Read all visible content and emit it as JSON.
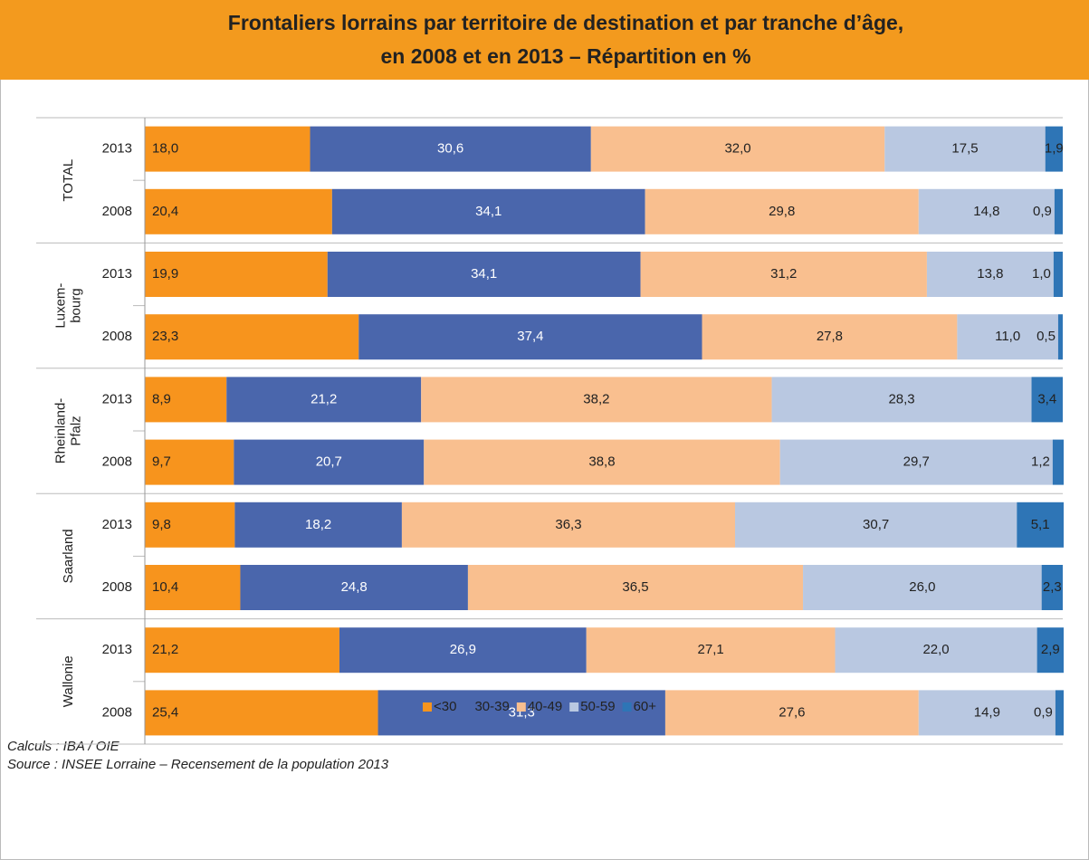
{
  "chart_data": {
    "type": "stacked-bar-horizontal",
    "title": [
      "Frontaliers lorrains par territoire de destination et par tranche d’âge,",
      "en 2008 et en 2013 – Répartition en %"
    ],
    "groups": [
      [
        "TOTAL"
      ],
      [
        "Luxem-",
        "bourg"
      ],
      [
        "Rheinland-",
        "Pfalz"
      ],
      [
        "Saarland"
      ],
      [
        "Wallonie"
      ]
    ],
    "categories": [
      "2013",
      "2008",
      "2013",
      "2008",
      "2013",
      "2008",
      "2013",
      "2008",
      "2013",
      "2008"
    ],
    "xlim": [
      0,
      100
    ],
    "series": [
      {
        "name": "<30",
        "color": "#f7941d",
        "values": [
          18.0,
          20.4,
          19.9,
          23.3,
          8.9,
          9.7,
          9.8,
          10.4,
          21.2,
          25.4
        ],
        "value_labels": [
          "18,0",
          "20,4",
          "19,9",
          "23,3",
          "8,9",
          "9,7",
          "9,8",
          "10,4",
          "21,2",
          "25,4"
        ]
      },
      {
        "name": "30-39",
        "color": "#4a66ac",
        "values": [
          30.6,
          34.1,
          34.1,
          37.4,
          21.2,
          20.7,
          18.2,
          24.8,
          26.9,
          31.3
        ],
        "value_labels": [
          "30,6",
          "34,1",
          "34,1",
          "37,4",
          "21,2",
          "20,7",
          "18,2",
          "24,8",
          "26,9",
          "31,3"
        ]
      },
      {
        "name": "40-49",
        "color": "#f9bf8f",
        "values": [
          32.0,
          29.8,
          31.2,
          27.8,
          38.2,
          38.8,
          36.3,
          36.5,
          27.1,
          27.6
        ],
        "value_labels": [
          "32,0",
          "29,8",
          "31,2",
          "27,8",
          "38,2",
          "38,8",
          "36,3",
          "36,5",
          "27,1",
          "27,6"
        ]
      },
      {
        "name": "50-59",
        "color": "#b9c8e1",
        "values": [
          17.5,
          14.8,
          13.8,
          11.0,
          28.3,
          29.7,
          30.7,
          26.0,
          22.0,
          14.9
        ],
        "value_labels": [
          "17,5",
          "14,8",
          "13,8",
          "11,0",
          "28,3",
          "29,7",
          "30,7",
          "26,0",
          "22,0",
          "14,9"
        ]
      },
      {
        "name": "60+",
        "color": "#2e75b6",
        "values": [
          1.9,
          0.9,
          1.0,
          0.5,
          3.4,
          1.2,
          5.1,
          2.3,
          2.9,
          0.9
        ],
        "value_labels": [
          "1,9",
          "0,9",
          "1,0",
          "0,5",
          "3,4",
          "1,2",
          "5,1",
          "2,3",
          "2,9",
          "0,9"
        ]
      }
    ],
    "notes": [
      "Calculs : IBA / OIE",
      "Source : INSEE Lorraine – Recensement de la population 2013"
    ]
  }
}
